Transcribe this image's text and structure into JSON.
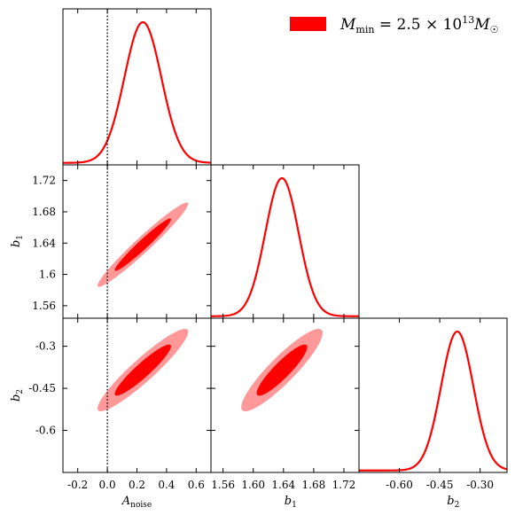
{
  "chart_data": {
    "type": "triangle-corner",
    "legend": {
      "label_prefix": "M",
      "label_sub": "min",
      "label_eq": " = 2.5 × 10",
      "label_exp": "13",
      "label_unit": "M",
      "label_unit_sub": "☉",
      "color": "#ff0000",
      "placement": "top-right"
    },
    "colors": {
      "line": "#ff0000",
      "inner": "#ff0000",
      "outer": "#ff9999"
    },
    "parameters": [
      {
        "id": "A_noise",
        "label_main": "A",
        "label_sub": "noise",
        "range": [
          -0.3,
          0.7
        ],
        "ticks": [
          "-0.2",
          "0.0",
          "0.2",
          "0.4",
          "0.6"
        ],
        "tick_values": [
          -0.2,
          0.0,
          0.2,
          0.4,
          0.6
        ],
        "mean": 0.24,
        "sigma": 0.125
      },
      {
        "id": "b1",
        "label_main": "b",
        "label_sub": "1",
        "range": [
          1.544,
          1.74
        ],
        "ticks": [
          "1.56",
          "1.60",
          "1.64",
          "1.68",
          "1.72"
        ],
        "tick_values": [
          1.56,
          1.6,
          1.64,
          1.68,
          1.72
        ],
        "y_ticks": [
          "1.56",
          "1.6",
          "1.64",
          "1.68",
          "1.72"
        ],
        "mean": 1.638,
        "sigma": 0.022
      },
      {
        "id": "b2",
        "label_main": "b",
        "label_sub": "2",
        "range": [
          -0.75,
          -0.2
        ],
        "ticks": [
          "-0.60",
          "-0.45",
          "-0.30"
        ],
        "tick_values": [
          -0.6,
          -0.45,
          -0.3
        ],
        "y_ticks": [
          "-0.6",
          "-0.45",
          "-0.3"
        ],
        "mean": -0.385,
        "sigma": 0.06
      }
    ],
    "correlations": {
      "b1_A_noise": 0.97,
      "b2_A_noise": 0.93,
      "b2_b1": 0.9
    },
    "reference_line": {
      "parameter": "A_noise",
      "value": 0.0,
      "style": "dotted"
    }
  }
}
